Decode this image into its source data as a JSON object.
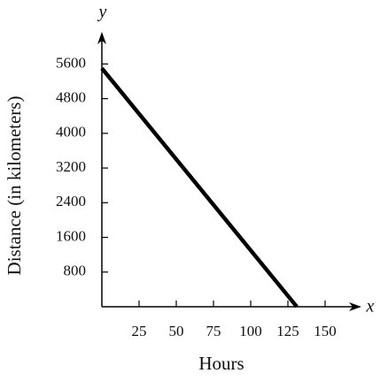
{
  "chart_data": {
    "type": "line",
    "x_label": "Hours",
    "y_label": "Distance (in kilometers)",
    "x_symbol": "x",
    "y_symbol": "y",
    "x": [
      0,
      131
    ],
    "values": [
      5500,
      0
    ],
    "color": "#000000",
    "xlim": [
      0,
      172
    ],
    "ylim": [
      0,
      6260
    ],
    "xticks": [
      25,
      50,
      75,
      100,
      125,
      150
    ],
    "yticks": [
      800,
      1600,
      2400,
      3200,
      4000,
      4800,
      5600
    ]
  }
}
